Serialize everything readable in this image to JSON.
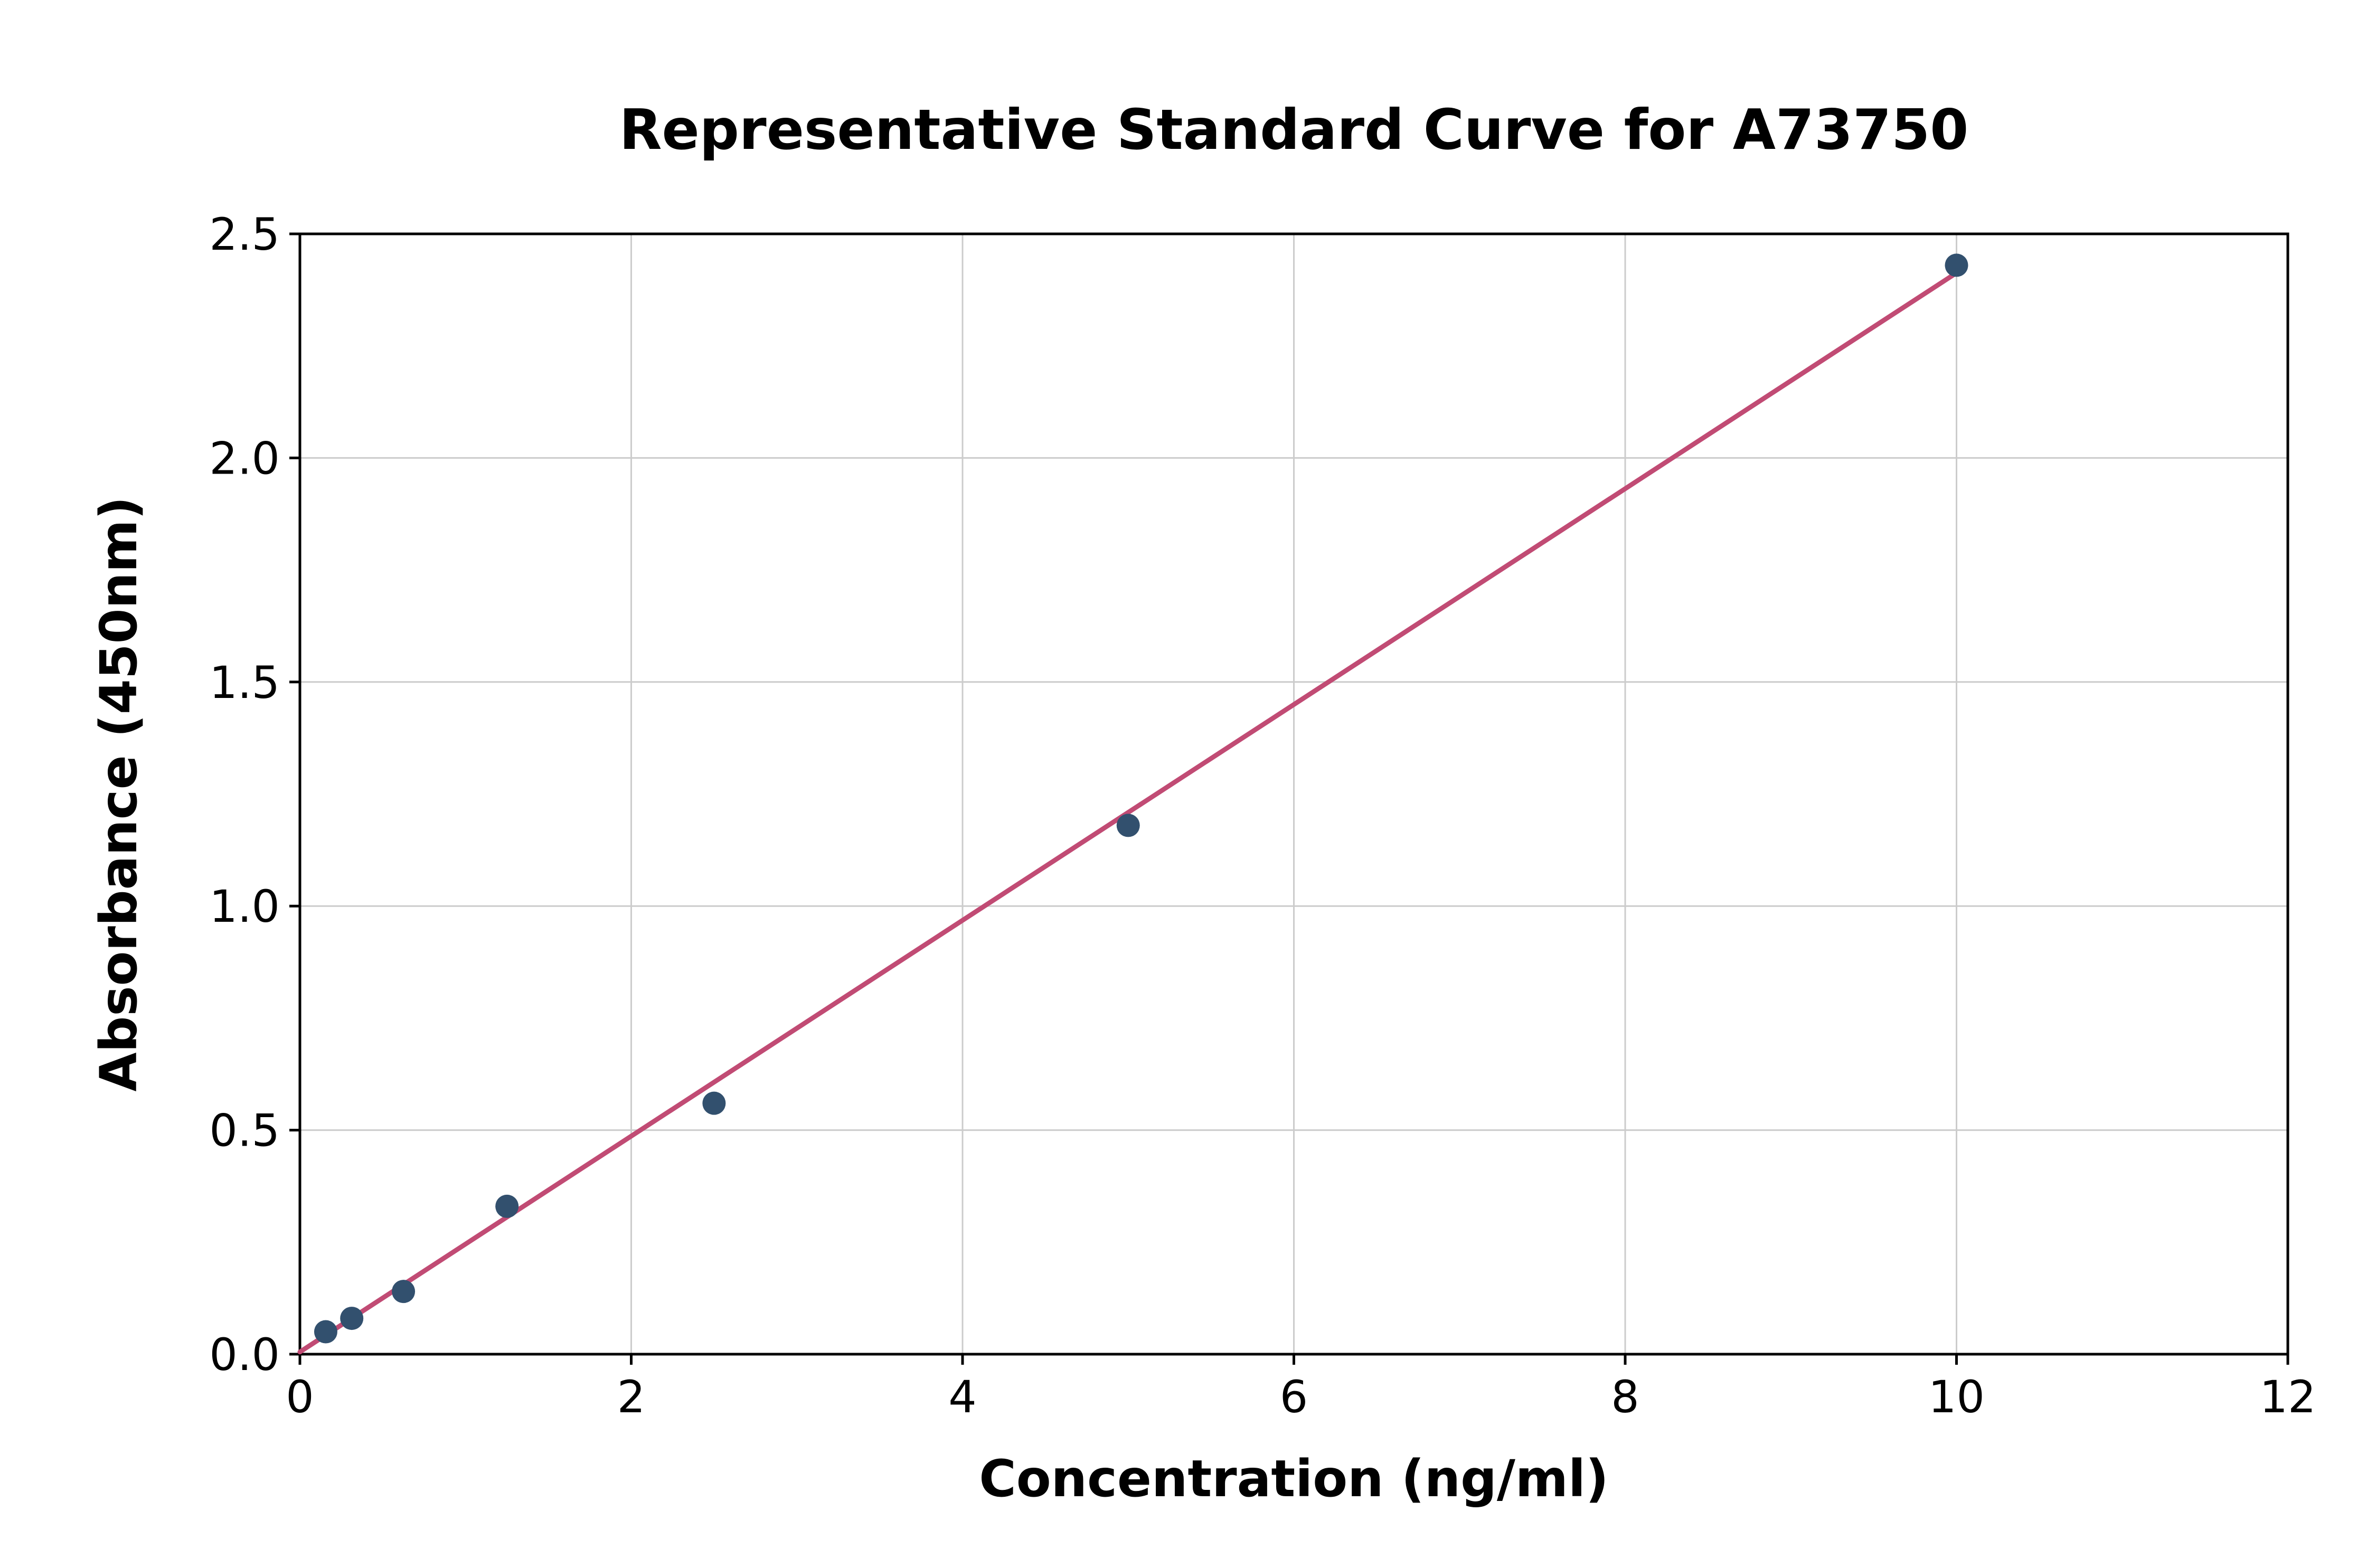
{
  "chart_data": {
    "type": "scatter",
    "title": "Representative Standard Curve for A73750",
    "xlabel": "Concentration (ng/ml)",
    "ylabel": "Absorbance (450nm)",
    "xlim": [
      0,
      12
    ],
    "ylim": [
      0,
      2.5
    ],
    "xticks": [
      0,
      2,
      4,
      6,
      8,
      10,
      12
    ],
    "xtick_labels": [
      "0",
      "2",
      "4",
      "6",
      "8",
      "10",
      "12"
    ],
    "yticks": [
      0.0,
      0.5,
      1.0,
      1.5,
      2.0,
      2.5
    ],
    "ytick_labels": [
      "0.0",
      "0.5",
      "1.0",
      "1.5",
      "2.0",
      "2.5"
    ],
    "grid": true,
    "legend": "none",
    "points": [
      {
        "x": 0.156,
        "y": 0.05
      },
      {
        "x": 0.313,
        "y": 0.08
      },
      {
        "x": 0.625,
        "y": 0.14
      },
      {
        "x": 1.25,
        "y": 0.33
      },
      {
        "x": 2.5,
        "y": 0.56
      },
      {
        "x": 5.0,
        "y": 1.18
      },
      {
        "x": 10.0,
        "y": 2.43
      }
    ],
    "fit_line": {
      "x_start": 0.0,
      "y_start": 0.005,
      "x_end": 10.05,
      "y_end": 2.425
    },
    "colors": {
      "point_color": "#32506e",
      "line_color": "#c14b74",
      "grid_color": "#cccccc",
      "frame_color": "#000000",
      "background": "#ffffff"
    }
  }
}
